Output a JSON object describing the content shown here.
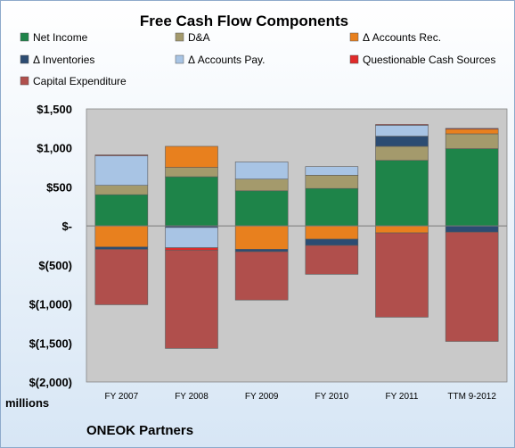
{
  "chart_data": {
    "type": "bar",
    "stacked": true,
    "title": "Free Cash Flow Components",
    "ylabel": "millions",
    "footer": "ONEOK Partners",
    "categories": [
      "FY 2007",
      "FY 2008",
      "FY 2009",
      "FY 2010",
      "FY 2011",
      "TTM 9-2012"
    ],
    "ylim": [
      -2000,
      1500
    ],
    "yticks": [
      {
        "value": 1500,
        "label": "$1,500"
      },
      {
        "value": 1000,
        "label": "$1,000"
      },
      {
        "value": 500,
        "label": "$500"
      },
      {
        "value": 0,
        "label": "$-"
      },
      {
        "value": -500,
        "label": "$(500)"
      },
      {
        "value": -1000,
        "label": "$(1,000)"
      },
      {
        "value": -1500,
        "label": "$(1,500)"
      },
      {
        "value": -2000,
        "label": "$(2,000)"
      }
    ],
    "grid": false,
    "legend_position": "top",
    "series": [
      {
        "name": "Net Income",
        "color": "#1e8449",
        "values": [
          400,
          630,
          450,
          480,
          840,
          990
        ]
      },
      {
        "name": "D&A",
        "color": "#a49a6c",
        "values": [
          120,
          120,
          150,
          170,
          180,
          190
        ]
      },
      {
        "name": "Δ Accounts Rec.",
        "color": "#e8801e",
        "values": [
          -270,
          270,
          -300,
          -170,
          -90,
          60
        ]
      },
      {
        "name": "Δ Inventories",
        "color": "#2c4c72",
        "values": [
          -30,
          -20,
          -30,
          -80,
          130,
          -80
        ]
      },
      {
        "name": "Δ Accounts Pay.",
        "color": "#a8c4e4",
        "values": [
          380,
          -260,
          220,
          110,
          140,
          0
        ]
      },
      {
        "name": "Questionable Cash Sources",
        "color": "#e02a2a",
        "values": [
          10,
          -30,
          0,
          0,
          10,
          10
        ]
      },
      {
        "name": "Capital Expenditure",
        "color": "#b04f4c",
        "values": [
          -710,
          -1260,
          -620,
          -370,
          -1080,
          -1400
        ]
      }
    ]
  }
}
